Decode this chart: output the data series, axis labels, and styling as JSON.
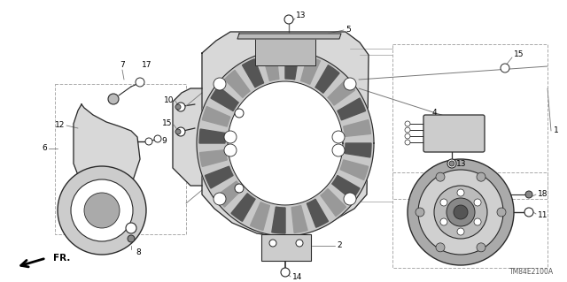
{
  "bg_color": "#ffffff",
  "diagram_code": "TM84E2100A",
  "fr_label": "FR.",
  "lfs": 6.5,
  "dgray": "#2a2a2a",
  "mgray": "#777777",
  "lgray": "#aaaaaa",
  "fillgray": "#d8d8d8",
  "darkfill": "#555555"
}
